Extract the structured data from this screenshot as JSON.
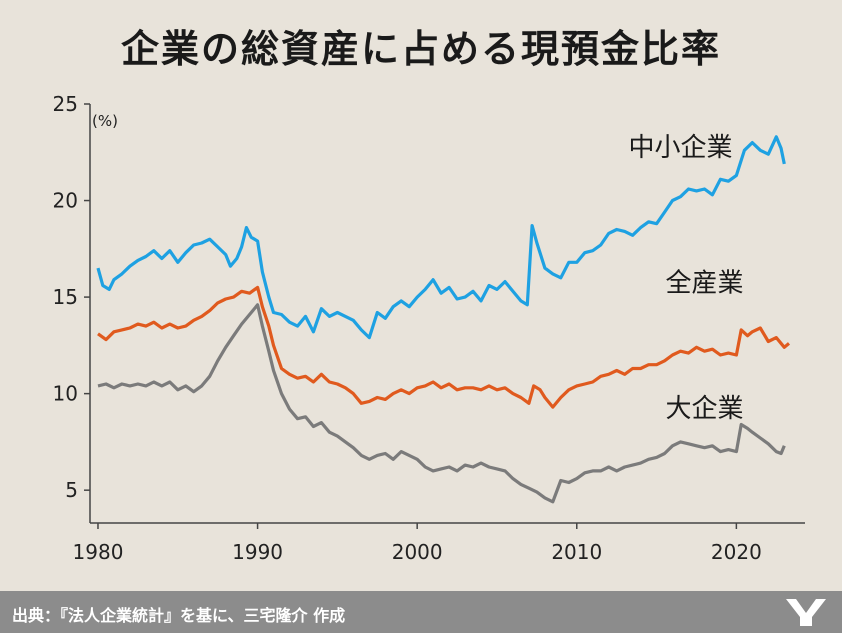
{
  "title": "企業の総資産に占める現預金比率",
  "source": "出典：『法人企業統計』を基に、三宅隆介 作成",
  "chart_data": {
    "type": "line",
    "title": "企業の総資産に占める現預金比率",
    "ylabel": "(%)",
    "xlim": [
      1979.5,
      2024.3
    ],
    "ylim": [
      3.3,
      25
    ],
    "xticks": [
      1980,
      1990,
      2000,
      2010,
      2020
    ],
    "yticks": [
      5,
      10,
      15,
      20,
      25
    ],
    "grid": false,
    "series": [
      {
        "name": "中小企業",
        "color": "#1ea1e2",
        "label_pos": [
          2016.5,
          22.3
        ],
        "points": [
          [
            1980.0,
            16.5
          ],
          [
            1980.3,
            15.6
          ],
          [
            1980.7,
            15.4
          ],
          [
            1981.0,
            15.9
          ],
          [
            1981.5,
            16.2
          ],
          [
            1982.0,
            16.6
          ],
          [
            1982.5,
            16.9
          ],
          [
            1983.0,
            17.1
          ],
          [
            1983.5,
            17.4
          ],
          [
            1984.0,
            17.0
          ],
          [
            1984.5,
            17.4
          ],
          [
            1985.0,
            16.8
          ],
          [
            1985.5,
            17.3
          ],
          [
            1986.0,
            17.7
          ],
          [
            1986.5,
            17.8
          ],
          [
            1987.0,
            18.0
          ],
          [
            1987.5,
            17.6
          ],
          [
            1988.0,
            17.2
          ],
          [
            1988.3,
            16.6
          ],
          [
            1988.7,
            17.0
          ],
          [
            1989.0,
            17.6
          ],
          [
            1989.3,
            18.6
          ],
          [
            1989.6,
            18.1
          ],
          [
            1990.0,
            17.9
          ],
          [
            1990.3,
            16.3
          ],
          [
            1990.7,
            15.0
          ],
          [
            1991.0,
            14.2
          ],
          [
            1991.5,
            14.1
          ],
          [
            1992.0,
            13.7
          ],
          [
            1992.5,
            13.5
          ],
          [
            1993.0,
            14.0
          ],
          [
            1993.5,
            13.2
          ],
          [
            1994.0,
            14.4
          ],
          [
            1994.5,
            14.0
          ],
          [
            1995.0,
            14.2
          ],
          [
            1995.5,
            14.0
          ],
          [
            1996.0,
            13.8
          ],
          [
            1996.5,
            13.3
          ],
          [
            1997.0,
            12.9
          ],
          [
            1997.5,
            14.2
          ],
          [
            1998.0,
            13.9
          ],
          [
            1998.5,
            14.5
          ],
          [
            1999.0,
            14.8
          ],
          [
            1999.5,
            14.5
          ],
          [
            2000.0,
            15.0
          ],
          [
            2000.5,
            15.4
          ],
          [
            2001.0,
            15.9
          ],
          [
            2001.5,
            15.2
          ],
          [
            2002.0,
            15.5
          ],
          [
            2002.5,
            14.9
          ],
          [
            2003.0,
            15.0
          ],
          [
            2003.5,
            15.3
          ],
          [
            2004.0,
            14.8
          ],
          [
            2004.5,
            15.6
          ],
          [
            2005.0,
            15.4
          ],
          [
            2005.5,
            15.8
          ],
          [
            2006.0,
            15.3
          ],
          [
            2006.5,
            14.8
          ],
          [
            2006.9,
            14.6
          ],
          [
            2007.2,
            18.7
          ],
          [
            2007.5,
            17.8
          ],
          [
            2008.0,
            16.5
          ],
          [
            2008.5,
            16.2
          ],
          [
            2009.0,
            16.0
          ],
          [
            2009.5,
            16.8
          ],
          [
            2010.0,
            16.8
          ],
          [
            2010.5,
            17.3
          ],
          [
            2011.0,
            17.4
          ],
          [
            2011.5,
            17.7
          ],
          [
            2012.0,
            18.3
          ],
          [
            2012.5,
            18.5
          ],
          [
            2013.0,
            18.4
          ],
          [
            2013.5,
            18.2
          ],
          [
            2014.0,
            18.6
          ],
          [
            2014.5,
            18.9
          ],
          [
            2015.0,
            18.8
          ],
          [
            2015.5,
            19.4
          ],
          [
            2016.0,
            20.0
          ],
          [
            2016.5,
            20.2
          ],
          [
            2017.0,
            20.6
          ],
          [
            2017.5,
            20.5
          ],
          [
            2018.0,
            20.6
          ],
          [
            2018.5,
            20.3
          ],
          [
            2019.0,
            21.1
          ],
          [
            2019.5,
            21.0
          ],
          [
            2020.0,
            21.3
          ],
          [
            2020.5,
            22.6
          ],
          [
            2021.0,
            23.0
          ],
          [
            2021.5,
            22.6
          ],
          [
            2022.0,
            22.4
          ],
          [
            2022.5,
            23.3
          ],
          [
            2022.8,
            22.7
          ],
          [
            2023.0,
            21.9
          ]
        ]
      },
      {
        "name": "全産業",
        "color": "#e05a1e",
        "label_pos": [
          2018.0,
          15.3
        ],
        "points": [
          [
            1980.0,
            13.1
          ],
          [
            1980.5,
            12.8
          ],
          [
            1981.0,
            13.2
          ],
          [
            1981.5,
            13.3
          ],
          [
            1982.0,
            13.4
          ],
          [
            1982.5,
            13.6
          ],
          [
            1983.0,
            13.5
          ],
          [
            1983.5,
            13.7
          ],
          [
            1984.0,
            13.4
          ],
          [
            1984.5,
            13.6
          ],
          [
            1985.0,
            13.4
          ],
          [
            1985.5,
            13.5
          ],
          [
            1986.0,
            13.8
          ],
          [
            1986.5,
            14.0
          ],
          [
            1987.0,
            14.3
          ],
          [
            1987.5,
            14.7
          ],
          [
            1988.0,
            14.9
          ],
          [
            1988.5,
            15.0
          ],
          [
            1989.0,
            15.3
          ],
          [
            1989.5,
            15.2
          ],
          [
            1990.0,
            15.5
          ],
          [
            1990.3,
            14.5
          ],
          [
            1990.7,
            13.5
          ],
          [
            1991.0,
            12.5
          ],
          [
            1991.5,
            11.3
          ],
          [
            1992.0,
            11.0
          ],
          [
            1992.5,
            10.8
          ],
          [
            1993.0,
            10.9
          ],
          [
            1993.5,
            10.6
          ],
          [
            1994.0,
            11.0
          ],
          [
            1994.5,
            10.6
          ],
          [
            1995.0,
            10.5
          ],
          [
            1995.5,
            10.3
          ],
          [
            1996.0,
            10.0
          ],
          [
            1996.5,
            9.5
          ],
          [
            1997.0,
            9.6
          ],
          [
            1997.5,
            9.8
          ],
          [
            1998.0,
            9.7
          ],
          [
            1998.5,
            10.0
          ],
          [
            1999.0,
            10.2
          ],
          [
            1999.5,
            10.0
          ],
          [
            2000.0,
            10.3
          ],
          [
            2000.5,
            10.4
          ],
          [
            2001.0,
            10.6
          ],
          [
            2001.5,
            10.3
          ],
          [
            2002.0,
            10.5
          ],
          [
            2002.5,
            10.2
          ],
          [
            2003.0,
            10.3
          ],
          [
            2003.5,
            10.3
          ],
          [
            2004.0,
            10.2
          ],
          [
            2004.5,
            10.4
          ],
          [
            2005.0,
            10.2
          ],
          [
            2005.5,
            10.3
          ],
          [
            2006.0,
            10.0
          ],
          [
            2006.5,
            9.8
          ],
          [
            2007.0,
            9.5
          ],
          [
            2007.3,
            10.4
          ],
          [
            2007.7,
            10.2
          ],
          [
            2008.0,
            9.8
          ],
          [
            2008.5,
            9.3
          ],
          [
            2009.0,
            9.8
          ],
          [
            2009.5,
            10.2
          ],
          [
            2010.0,
            10.4
          ],
          [
            2010.5,
            10.5
          ],
          [
            2011.0,
            10.6
          ],
          [
            2011.5,
            10.9
          ],
          [
            2012.0,
            11.0
          ],
          [
            2012.5,
            11.2
          ],
          [
            2013.0,
            11.0
          ],
          [
            2013.5,
            11.3
          ],
          [
            2014.0,
            11.3
          ],
          [
            2014.5,
            11.5
          ],
          [
            2015.0,
            11.5
          ],
          [
            2015.5,
            11.7
          ],
          [
            2016.0,
            12.0
          ],
          [
            2016.5,
            12.2
          ],
          [
            2017.0,
            12.1
          ],
          [
            2017.5,
            12.4
          ],
          [
            2018.0,
            12.2
          ],
          [
            2018.5,
            12.3
          ],
          [
            2019.0,
            12.0
          ],
          [
            2019.5,
            12.1
          ],
          [
            2020.0,
            12.0
          ],
          [
            2020.3,
            13.3
          ],
          [
            2020.7,
            13.0
          ],
          [
            2021.0,
            13.2
          ],
          [
            2021.5,
            13.4
          ],
          [
            2022.0,
            12.7
          ],
          [
            2022.5,
            12.9
          ],
          [
            2023.0,
            12.4
          ],
          [
            2023.3,
            12.6
          ]
        ]
      },
      {
        "name": "大企業",
        "color": "#7b7b7b",
        "label_pos": [
          2018.0,
          8.8
        ],
        "points": [
          [
            1980.0,
            10.4
          ],
          [
            1980.5,
            10.5
          ],
          [
            1981.0,
            10.3
          ],
          [
            1981.5,
            10.5
          ],
          [
            1982.0,
            10.4
          ],
          [
            1982.5,
            10.5
          ],
          [
            1983.0,
            10.4
          ],
          [
            1983.5,
            10.6
          ],
          [
            1984.0,
            10.4
          ],
          [
            1984.5,
            10.6
          ],
          [
            1985.0,
            10.2
          ],
          [
            1985.5,
            10.4
          ],
          [
            1986.0,
            10.1
          ],
          [
            1986.5,
            10.4
          ],
          [
            1987.0,
            10.9
          ],
          [
            1987.5,
            11.7
          ],
          [
            1988.0,
            12.4
          ],
          [
            1988.5,
            13.0
          ],
          [
            1989.0,
            13.6
          ],
          [
            1989.5,
            14.1
          ],
          [
            1990.0,
            14.6
          ],
          [
            1990.3,
            13.5
          ],
          [
            1990.7,
            12.2
          ],
          [
            1991.0,
            11.2
          ],
          [
            1991.5,
            10.0
          ],
          [
            1992.0,
            9.2
          ],
          [
            1992.5,
            8.7
          ],
          [
            1993.0,
            8.8
          ],
          [
            1993.5,
            8.3
          ],
          [
            1994.0,
            8.5
          ],
          [
            1994.5,
            8.0
          ],
          [
            1995.0,
            7.8
          ],
          [
            1995.5,
            7.5
          ],
          [
            1996.0,
            7.2
          ],
          [
            1996.5,
            6.8
          ],
          [
            1997.0,
            6.6
          ],
          [
            1997.5,
            6.8
          ],
          [
            1998.0,
            6.9
          ],
          [
            1998.5,
            6.6
          ],
          [
            1999.0,
            7.0
          ],
          [
            1999.5,
            6.8
          ],
          [
            2000.0,
            6.6
          ],
          [
            2000.5,
            6.2
          ],
          [
            2001.0,
            6.0
          ],
          [
            2001.5,
            6.1
          ],
          [
            2002.0,
            6.2
          ],
          [
            2002.5,
            6.0
          ],
          [
            2003.0,
            6.3
          ],
          [
            2003.5,
            6.2
          ],
          [
            2004.0,
            6.4
          ],
          [
            2004.5,
            6.2
          ],
          [
            2005.0,
            6.1
          ],
          [
            2005.5,
            6.0
          ],
          [
            2006.0,
            5.6
          ],
          [
            2006.5,
            5.3
          ],
          [
            2007.0,
            5.1
          ],
          [
            2007.5,
            4.9
          ],
          [
            2008.0,
            4.6
          ],
          [
            2008.5,
            4.4
          ],
          [
            2009.0,
            5.5
          ],
          [
            2009.5,
            5.4
          ],
          [
            2010.0,
            5.6
          ],
          [
            2010.5,
            5.9
          ],
          [
            2011.0,
            6.0
          ],
          [
            2011.5,
            6.0
          ],
          [
            2012.0,
            6.2
          ],
          [
            2012.5,
            6.0
          ],
          [
            2013.0,
            6.2
          ],
          [
            2013.5,
            6.3
          ],
          [
            2014.0,
            6.4
          ],
          [
            2014.5,
            6.6
          ],
          [
            2015.0,
            6.7
          ],
          [
            2015.5,
            6.9
          ],
          [
            2016.0,
            7.3
          ],
          [
            2016.5,
            7.5
          ],
          [
            2017.0,
            7.4
          ],
          [
            2017.5,
            7.3
          ],
          [
            2018.0,
            7.2
          ],
          [
            2018.5,
            7.3
          ],
          [
            2019.0,
            7.0
          ],
          [
            2019.5,
            7.1
          ],
          [
            2020.0,
            7.0
          ],
          [
            2020.3,
            8.4
          ],
          [
            2020.7,
            8.2
          ],
          [
            2021.0,
            8.0
          ],
          [
            2021.5,
            7.7
          ],
          [
            2022.0,
            7.4
          ],
          [
            2022.5,
            7.0
          ],
          [
            2022.8,
            6.9
          ],
          [
            2023.0,
            7.3
          ]
        ]
      }
    ]
  }
}
